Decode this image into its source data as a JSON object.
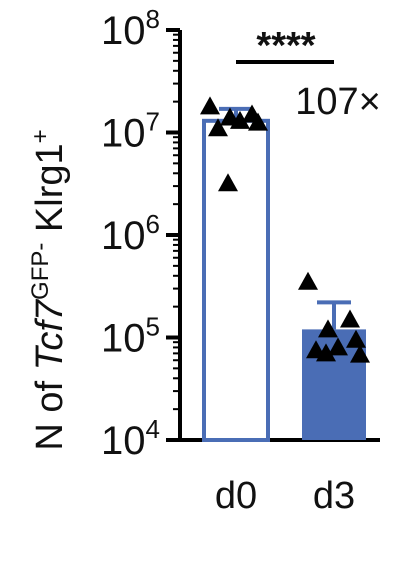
{
  "chart_data": {
    "type": "bar",
    "title": "",
    "ylabel": {
      "prefix": "N of ",
      "gene": "Tcf7",
      "gene_sup": "GFP-",
      "suffix": " Klrg1",
      "suffix_sup": "+"
    },
    "yscale": "log",
    "ylim": [
      10000,
      100000000
    ],
    "yticks": [
      {
        "value": 10000,
        "base": "10",
        "exp": "4"
      },
      {
        "value": 100000,
        "base": "10",
        "exp": "5"
      },
      {
        "value": 1000000,
        "base": "10",
        "exp": "6"
      },
      {
        "value": 10000000,
        "base": "10",
        "exp": "7"
      },
      {
        "value": 100000000,
        "base": "10",
        "exp": "8"
      }
    ],
    "categories": [
      "d0",
      "d3"
    ],
    "values": [
      13000000,
      120000
    ],
    "error_upper": [
      17000000,
      220000
    ],
    "points": [
      [
        18000000,
        15000000,
        14000000,
        12500000,
        13000000,
        11000000,
        3200000
      ],
      [
        350000,
        150000,
        120000,
        95000,
        80000,
        75000,
        70000,
        68000
      ]
    ],
    "bar_styles": [
      "open",
      "filled"
    ],
    "annotations": {
      "significance": "****",
      "fold_change": "107×"
    },
    "colors": {
      "bar": "#4a6db5",
      "marker": "#000000",
      "axis": "#000000"
    }
  }
}
